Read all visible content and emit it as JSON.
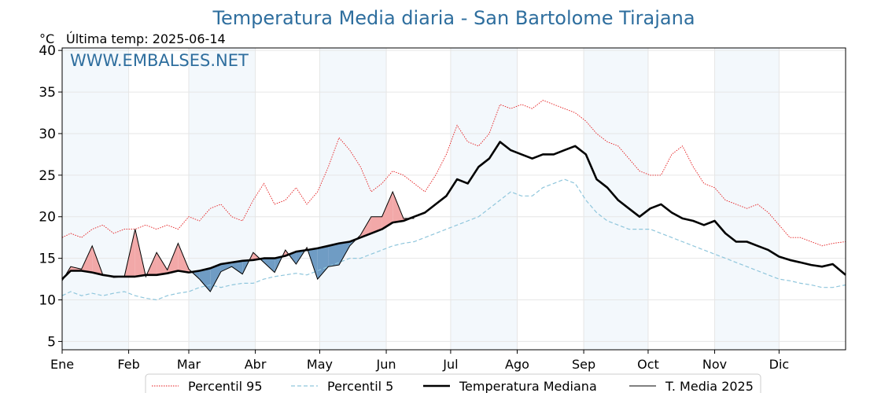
{
  "chart_data": {
    "type": "line",
    "title": "Temperatura Media diaria - San Bartolome Tirajana",
    "subtitle": "Última temp: 2025-06-14",
    "ylabel": "°C",
    "watermark": "WWW.EMBALSES.NET",
    "ylim": [
      4,
      40.3
    ],
    "xlim": [
      1,
      366
    ],
    "grid": true,
    "legend_position": "bottom",
    "y_ticks": [
      5,
      10,
      15,
      20,
      25,
      30,
      35,
      40
    ],
    "months": [
      "Ene",
      "Feb",
      "Mar",
      "Abr",
      "May",
      "Jun",
      "Jul",
      "Ago",
      "Sep",
      "Oct",
      "Nov",
      "Dic"
    ],
    "month_start_days": [
      1,
      32,
      60,
      91,
      121,
      152,
      182,
      213,
      244,
      274,
      305,
      335
    ],
    "shaded_months": [
      "Ene",
      "Mar",
      "May",
      "Jul",
      "Sep",
      "Nov"
    ],
    "colors": {
      "p95": "#e41a1c",
      "p5": "#8fc6dc",
      "median": "#000000",
      "current": "#000000",
      "above_fill": "#f2a8a8",
      "below_fill": "#6f9cc4",
      "band": "#f3f8fc",
      "title": "#2e6e9e"
    },
    "series": [
      {
        "name": "Percentil 95",
        "style": "dotted-red",
        "x": [
          1,
          5,
          10,
          15,
          20,
          25,
          30,
          35,
          40,
          45,
          50,
          55,
          60,
          65,
          70,
          75,
          80,
          85,
          90,
          95,
          100,
          105,
          110,
          115,
          120,
          125,
          130,
          135,
          140,
          145,
          150,
          155,
          160,
          165,
          170,
          175,
          180,
          185,
          190,
          195,
          200,
          205,
          210,
          215,
          220,
          225,
          230,
          235,
          240,
          245,
          250,
          255,
          260,
          265,
          270,
          275,
          280,
          285,
          290,
          295,
          300,
          305,
          310,
          315,
          320,
          325,
          330,
          335,
          340,
          345,
          350,
          355,
          360,
          366
        ],
        "values": [
          17.5,
          18,
          17.5,
          18.5,
          19,
          18,
          18.5,
          18.5,
          19,
          18.5,
          19,
          18.5,
          20,
          19.5,
          21,
          21.5,
          20,
          19.5,
          22,
          24,
          21.5,
          22,
          23.5,
          21.5,
          23,
          26,
          29.5,
          28,
          26,
          23,
          24,
          25.5,
          25,
          24,
          23,
          25,
          27.5,
          31,
          29,
          28.5,
          30,
          33.5,
          33,
          33.5,
          33,
          34,
          33.5,
          33,
          32.5,
          31.5,
          30,
          29,
          28.5,
          27,
          25.5,
          25,
          25,
          27.5,
          28.5,
          26,
          24,
          23.5,
          22,
          21.5,
          21,
          21.5,
          20.5,
          19,
          17.5,
          17.5,
          17,
          16.5,
          16.8,
          17
        ]
      },
      {
        "name": "Percentil 5",
        "style": "dashed-lightblue",
        "x": [
          1,
          5,
          10,
          15,
          20,
          25,
          30,
          35,
          40,
          45,
          50,
          55,
          60,
          65,
          70,
          75,
          80,
          85,
          90,
          95,
          100,
          105,
          110,
          115,
          120,
          125,
          130,
          135,
          140,
          145,
          150,
          155,
          160,
          165,
          170,
          175,
          180,
          185,
          190,
          195,
          200,
          205,
          210,
          215,
          220,
          225,
          230,
          235,
          240,
          245,
          250,
          255,
          260,
          265,
          270,
          275,
          280,
          285,
          290,
          295,
          300,
          305,
          310,
          315,
          320,
          325,
          330,
          335,
          340,
          345,
          350,
          355,
          360,
          366
        ],
        "values": [
          10.5,
          11,
          10.5,
          10.8,
          10.5,
          10.8,
          11,
          10.5,
          10.2,
          10,
          10.5,
          10.8,
          11,
          11.5,
          11.8,
          11.5,
          11.8,
          12,
          12,
          12.5,
          12.8,
          13,
          13.2,
          13,
          13.5,
          14,
          14.5,
          15,
          15,
          15.5,
          16,
          16.5,
          16.8,
          17,
          17.5,
          18,
          18.5,
          19,
          19.5,
          20,
          21,
          22,
          23,
          22.5,
          22.5,
          23.5,
          24,
          24.5,
          24,
          22,
          20.5,
          19.5,
          19,
          18.5,
          18.5,
          18.5,
          18,
          17.5,
          17,
          16.5,
          16,
          15.5,
          15,
          14.5,
          14,
          13.5,
          13,
          12.5,
          12.3,
          12,
          11.8,
          11.5,
          11.5,
          11.8
        ]
      },
      {
        "name": "Temperatura Mediana",
        "style": "thick-black",
        "x": [
          1,
          5,
          10,
          15,
          20,
          25,
          30,
          35,
          40,
          45,
          50,
          55,
          60,
          65,
          70,
          75,
          80,
          85,
          90,
          95,
          100,
          105,
          110,
          115,
          120,
          125,
          130,
          135,
          140,
          145,
          150,
          155,
          160,
          165,
          170,
          175,
          180,
          185,
          190,
          195,
          200,
          205,
          210,
          215,
          220,
          225,
          230,
          235,
          240,
          245,
          250,
          255,
          260,
          265,
          270,
          275,
          280,
          285,
          290,
          295,
          300,
          305,
          310,
          315,
          320,
          325,
          330,
          335,
          340,
          345,
          350,
          355,
          360,
          366
        ],
        "values": [
          12.5,
          13.5,
          13.5,
          13.3,
          13,
          12.8,
          12.8,
          12.8,
          13,
          13,
          13.2,
          13.5,
          13.3,
          13.5,
          13.8,
          14.3,
          14.5,
          14.7,
          14.8,
          15,
          15,
          15.3,
          15.8,
          16,
          16.2,
          16.5,
          16.8,
          17,
          17.5,
          18,
          18.5,
          19.3,
          19.5,
          20,
          20.5,
          21.5,
          22.5,
          24.5,
          24,
          26,
          27,
          29,
          28,
          27.5,
          27,
          27.5,
          27.5,
          28,
          28.5,
          27.5,
          24.5,
          23.5,
          22,
          21,
          20,
          21,
          21.5,
          20.5,
          19.8,
          19.5,
          19,
          19.5,
          18,
          17,
          17,
          16.5,
          16,
          15.2,
          14.8,
          14.5,
          14.2,
          14,
          14.3,
          13
        ]
      },
      {
        "name": "T. Media 2025",
        "style": "thin-black",
        "x": [
          1,
          5,
          10,
          15,
          20,
          25,
          30,
          35,
          40,
          45,
          50,
          55,
          60,
          65,
          70,
          75,
          80,
          85,
          90,
          95,
          100,
          105,
          110,
          115,
          120,
          125,
          130,
          135,
          140,
          145,
          150,
          155,
          160,
          165
        ],
        "values": [
          12.3,
          14,
          13.7,
          16.5,
          13,
          12.7,
          12.8,
          18.5,
          12.8,
          15.7,
          13.6,
          16.8,
          13.7,
          12.5,
          11,
          13.4,
          14,
          13.1,
          15.7,
          14.5,
          13.3,
          16,
          14.3,
          16.3,
          12.5,
          14,
          14.2,
          16.5,
          17.8,
          20,
          20,
          23,
          19.8,
          19.8
        ]
      }
    ]
  }
}
